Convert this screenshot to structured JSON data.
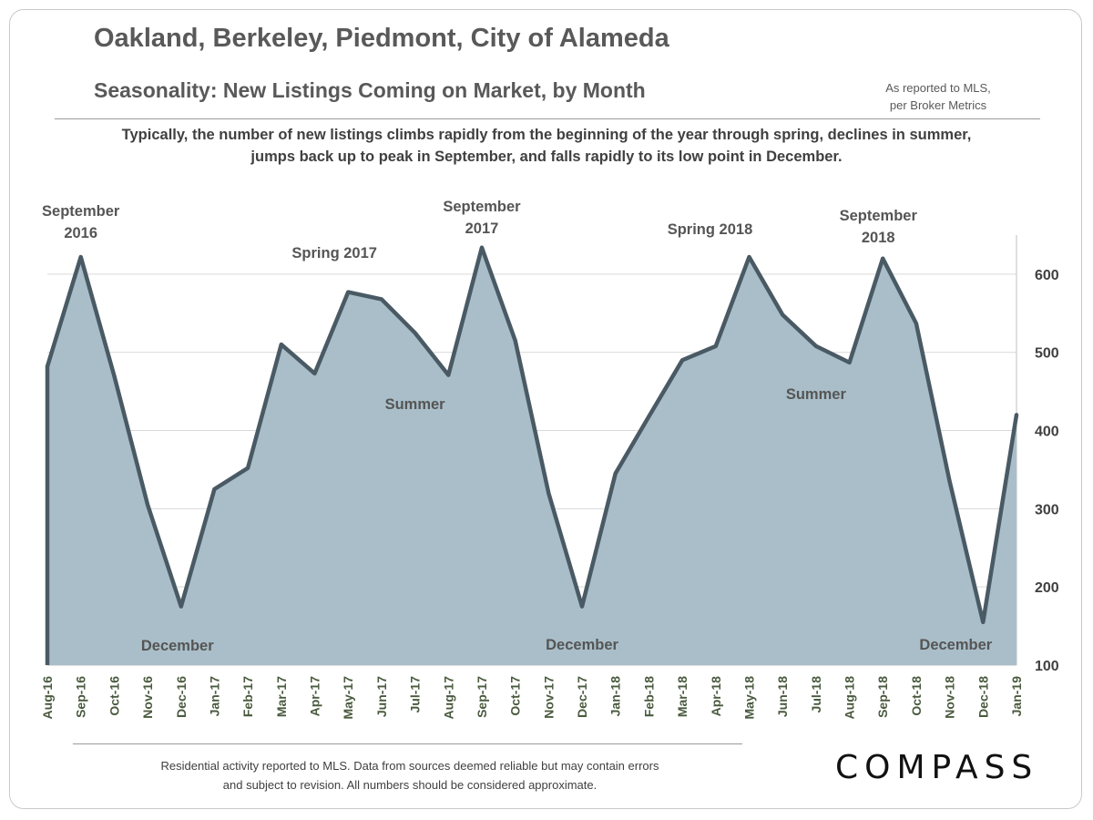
{
  "header": {
    "title": "Oakland, Berkeley, Piedmont, City of Alameda",
    "subtitle": "Seasonality: New Listings Coming on Market, by Month",
    "source_line1": "As reported to MLS,",
    "source_line2": "per Broker Metrics",
    "description_line1": "Typically,  the number of new listings climbs rapidly from the beginning of the year through spring, declines in summer,",
    "description_line2": "jumps back up to peak in September, and falls rapidly to its low point in December."
  },
  "footer": {
    "note_line1": "Residential activity reported to MLS. Data from sources deemed reliable but may contain errors",
    "note_line2": "and subject to revision. All numbers should be considered approximate.",
    "logo": "COMPASS"
  },
  "colors": {
    "area_fill": "#a9bec8",
    "line": "#4a5a64",
    "grid": "#d9d9d9",
    "tick_label": "#4a5a3e",
    "annotation": "#555555"
  },
  "chart_data": {
    "type": "area",
    "title": "Seasonality: New Listings Coming on Market, by Month",
    "xlabel": "",
    "ylabel": "",
    "y_axis_position": "right",
    "ylim": [
      100,
      650
    ],
    "yticks": [
      100,
      200,
      300,
      400,
      500,
      600
    ],
    "grid": true,
    "categories": [
      "Aug-16",
      "Sep-16",
      "Oct-16",
      "Nov-16",
      "Dec-16",
      "Jan-17",
      "Feb-17",
      "Mar-17",
      "Apr-17",
      "May-17",
      "Jun-17",
      "Jul-17",
      "Aug-17",
      "Sep-17",
      "Oct-17",
      "Nov-17",
      "Dec-17",
      "Jan-18",
      "Feb-18",
      "Mar-18",
      "Apr-18",
      "May-18",
      "Jun-18",
      "Jul-18",
      "Aug-18",
      "Sep-18",
      "Oct-18",
      "Nov-18",
      "Dec-18",
      "Jan-19"
    ],
    "values": [
      482,
      622,
      470,
      305,
      175,
      325,
      352,
      510,
      473,
      577,
      568,
      525,
      471,
      634,
      515,
      320,
      175,
      345,
      418,
      490,
      508,
      622,
      548,
      508,
      487,
      620,
      537,
      335,
      155,
      420
    ],
    "annotations": [
      {
        "lines": [
          "September",
          "2016"
        ],
        "category": "Sep-16"
      },
      {
        "lines": [
          "December"
        ],
        "category": "Dec-16"
      },
      {
        "lines": [
          "Spring 2017"
        ],
        "category": "May-17"
      },
      {
        "lines": [
          "Summer"
        ],
        "category": "Jul-17"
      },
      {
        "lines": [
          "September",
          "2017"
        ],
        "category": "Sep-17"
      },
      {
        "lines": [
          "December"
        ],
        "category": "Dec-17"
      },
      {
        "lines": [
          "Spring 2018"
        ],
        "category": "May-18"
      },
      {
        "lines": [
          "Summer"
        ],
        "category": "Jul-18"
      },
      {
        "lines": [
          "September",
          "2018"
        ],
        "category": "Sep-18"
      },
      {
        "lines": [
          "December"
        ],
        "category": "Dec-18"
      }
    ]
  }
}
